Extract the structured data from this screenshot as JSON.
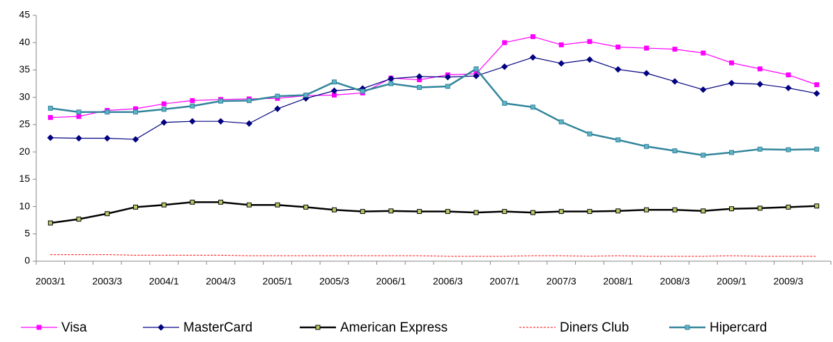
{
  "chart_data": {
    "type": "line",
    "categories": [
      "2003/1",
      null,
      "2003/3",
      null,
      "2004/1",
      null,
      "2004/3",
      null,
      "2005/1",
      null,
      "2005/3",
      null,
      "2006/1",
      null,
      "2006/3",
      null,
      "2007/1",
      null,
      "2007/3",
      null,
      "2008/1",
      null,
      "2008/3",
      null,
      "2009/1",
      null,
      "2009/3",
      null
    ],
    "ylim": [
      0,
      45
    ],
    "yticks": [
      0,
      5,
      10,
      15,
      20,
      25,
      30,
      35,
      40,
      45
    ],
    "grid": false,
    "legend": "bottom",
    "series": [
      {
        "name": "Visa",
        "color": "#ff00ff",
        "marker": "square",
        "marker_fill": "#ff00ff",
        "width": 1.2,
        "dash": "none",
        "values": [
          26.3,
          26.5,
          27.6,
          27.9,
          28.8,
          29.4,
          29.6,
          29.7,
          29.8,
          30.3,
          30.4,
          30.8,
          33.5,
          33.2,
          34.1,
          34.3,
          40.0,
          41.1,
          39.6,
          40.2,
          39.2,
          39.0,
          38.8,
          38.1,
          36.3,
          35.2,
          34.1,
          32.3
        ]
      },
      {
        "name": "MasterCard",
        "color": "#000080",
        "marker": "diamond",
        "marker_fill": "#000080",
        "width": 1.2,
        "dash": "none",
        "values": [
          22.6,
          22.5,
          22.5,
          22.3,
          25.4,
          25.6,
          25.6,
          25.2,
          27.9,
          29.8,
          31.2,
          31.6,
          33.4,
          33.8,
          33.7,
          33.9,
          35.6,
          37.3,
          36.2,
          36.9,
          35.1,
          34.4,
          32.9,
          31.4,
          32.6,
          32.4,
          31.7,
          30.7
        ]
      },
      {
        "name": "American Express",
        "color": "#000000",
        "marker": "square",
        "marker_fill": "#b5cc66",
        "width": 2.5,
        "dash": "none",
        "values": [
          7.0,
          7.7,
          8.7,
          9.9,
          10.3,
          10.8,
          10.8,
          10.3,
          10.3,
          9.9,
          9.4,
          9.1,
          9.2,
          9.1,
          9.1,
          8.9,
          9.1,
          8.9,
          9.1,
          9.1,
          9.2,
          9.4,
          9.4,
          9.2,
          9.6,
          9.7,
          9.9,
          10.1
        ]
      },
      {
        "name": "Diners Club",
        "color": "#ff0000",
        "marker": "none",
        "marker_fill": "#ff0000",
        "width": 1,
        "dash": "3,2",
        "values": [
          1.2,
          1.2,
          1.2,
          1.1,
          1.1,
          1.1,
          1.1,
          1.0,
          1.0,
          1.0,
          1.0,
          1.0,
          1.0,
          1.0,
          0.9,
          0.9,
          0.9,
          1.0,
          1.0,
          0.9,
          1.0,
          0.9,
          0.9,
          0.9,
          1.0,
          0.9,
          0.9,
          0.9
        ]
      },
      {
        "name": "Hipercard",
        "color": "#31849b",
        "marker": "square",
        "marker_fill": "#5fb3c6",
        "width": 2.5,
        "dash": "none",
        "values": [
          28.0,
          27.3,
          27.3,
          27.3,
          27.8,
          28.4,
          29.3,
          29.4,
          30.2,
          30.4,
          32.8,
          31.1,
          32.5,
          31.8,
          32.0,
          35.2,
          28.9,
          28.2,
          25.5,
          23.3,
          22.2,
          21.0,
          20.2,
          19.4,
          19.9,
          20.5,
          20.4,
          20.5
        ]
      }
    ]
  }
}
